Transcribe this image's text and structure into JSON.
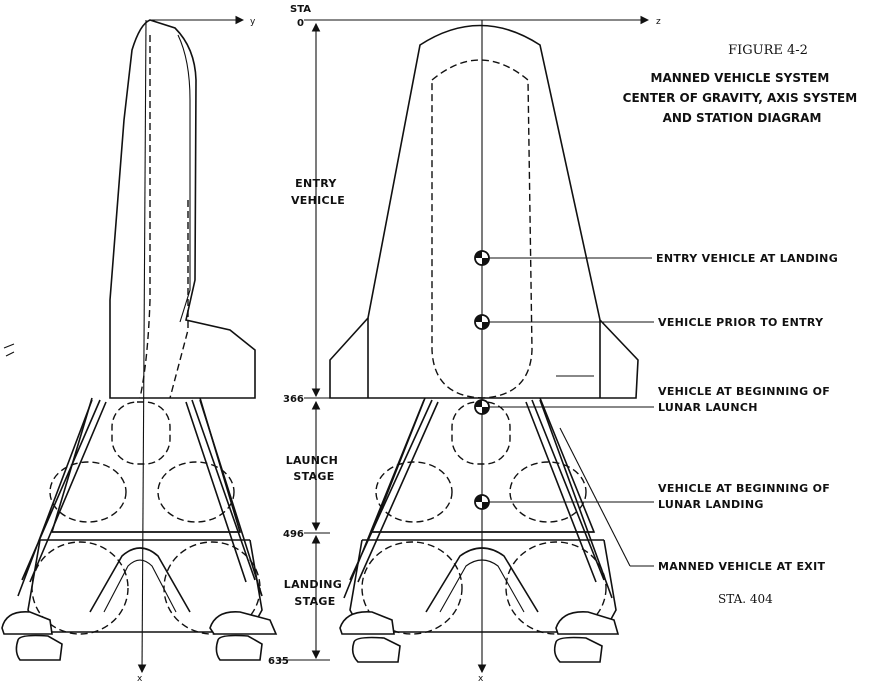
{
  "figure": {
    "number": "FIGURE 4-2",
    "title_lines": [
      "MANNED VEHICLE SYSTEM",
      "CENTER OF GRAVITY, AXIS SYSTEM",
      "AND STATION DIAGRAM"
    ]
  },
  "axes": {
    "sta_label": "STA",
    "origin": "0",
    "y_axis": "y",
    "z_axis": "z",
    "x_axis": "x"
  },
  "stations": [
    {
      "value": "366"
    },
    {
      "value": "496"
    },
    {
      "value": "635"
    }
  ],
  "sections": [
    {
      "lines": [
        "ENTRY",
        "VEHICLE"
      ]
    },
    {
      "lines": [
        "LAUNCH",
        "STAGE"
      ]
    },
    {
      "lines": [
        "LANDING",
        "STAGE"
      ]
    }
  ],
  "cg_labels": [
    {
      "lines": [
        "ENTRY VEHICLE AT LANDING"
      ]
    },
    {
      "lines": [
        "VEHICLE PRIOR TO ENTRY"
      ]
    },
    {
      "lines": [
        "VEHICLE AT BEGINNING OF",
        "LUNAR LAUNCH"
      ]
    },
    {
      "lines": [
        "VEHICLE AT BEGINNING OF",
        "LUNAR LANDING"
      ]
    },
    {
      "lines": [
        "MANNED VEHICLE AT EXIT"
      ]
    }
  ],
  "exit_station": "STA. 404"
}
